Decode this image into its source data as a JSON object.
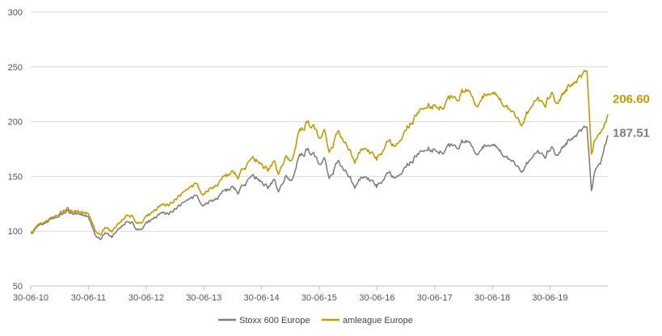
{
  "chart_data": {
    "type": "line",
    "title": "",
    "xlabel": "",
    "ylabel": "",
    "ylim": [
      50,
      300
    ],
    "yticks": [
      50,
      100,
      150,
      200,
      250,
      300
    ],
    "xticks": [
      "30-06-10",
      "30-06-11",
      "30-06-12",
      "30-06-13",
      "30-06-14",
      "30-06-15",
      "30-06-16",
      "30-06-17",
      "30-06-18",
      "30-06-19"
    ],
    "grid": "horizontal",
    "legend": "bottom",
    "series": [
      {
        "name": "Stoxx 600 Europe",
        "color": "#7f7f7f",
        "end_label": "187.51",
        "points": [
          [
            "2010-06-30",
            98
          ],
          [
            "2010-09-01",
            106
          ],
          [
            "2010-11-01",
            110
          ],
          [
            "2011-01-01",
            115
          ],
          [
            "2011-02-15",
            118
          ],
          [
            "2011-04-01",
            116
          ],
          [
            "2011-05-15",
            117
          ],
          [
            "2011-07-01",
            113
          ],
          [
            "2011-08-10",
            96
          ],
          [
            "2011-09-15",
            93
          ],
          [
            "2011-10-15",
            99
          ],
          [
            "2011-11-25",
            95
          ],
          [
            "2012-01-15",
            103
          ],
          [
            "2012-03-15",
            110
          ],
          [
            "2012-05-01",
            103
          ],
          [
            "2012-06-01",
            100
          ],
          [
            "2012-07-15",
            108
          ],
          [
            "2012-09-15",
            114
          ],
          [
            "2012-12-01",
            117
          ],
          [
            "2013-02-01",
            124
          ],
          [
            "2013-05-20",
            132
          ],
          [
            "2013-06-25",
            122
          ],
          [
            "2013-09-01",
            130
          ],
          [
            "2013-12-31",
            140
          ],
          [
            "2014-01-31",
            136
          ],
          [
            "2014-03-01",
            143
          ],
          [
            "2014-06-01",
            148
          ],
          [
            "2014-08-10",
            140
          ],
          [
            "2014-09-20",
            148
          ],
          [
            "2014-10-15",
            137
          ],
          [
            "2014-12-01",
            150
          ],
          [
            "2015-01-10",
            145
          ],
          [
            "2015-02-15",
            165
          ],
          [
            "2015-04-15",
            175
          ],
          [
            "2015-06-01",
            168
          ],
          [
            "2015-07-01",
            162
          ],
          [
            "2015-08-01",
            170
          ],
          [
            "2015-09-01",
            150
          ],
          [
            "2015-11-01",
            163
          ],
          [
            "2016-01-01",
            152
          ],
          [
            "2016-02-11",
            140
          ],
          [
            "2016-04-01",
            150
          ],
          [
            "2016-06-24",
            143
          ],
          [
            "2016-06-27",
            140
          ],
          [
            "2016-09-01",
            150
          ],
          [
            "2016-11-15",
            150
          ],
          [
            "2017-01-01",
            160
          ],
          [
            "2017-03-01",
            168
          ],
          [
            "2017-05-15",
            178
          ],
          [
            "2017-08-15",
            172
          ],
          [
            "2017-11-01",
            178
          ],
          [
            "2018-01-25",
            183
          ],
          [
            "2018-03-23",
            170
          ],
          [
            "2018-05-22",
            180
          ],
          [
            "2018-08-01",
            175
          ],
          [
            "2018-10-01",
            170
          ],
          [
            "2018-12-27",
            153
          ],
          [
            "2019-02-01",
            162
          ],
          [
            "2019-04-15",
            175
          ],
          [
            "2019-06-01",
            168
          ],
          [
            "2019-07-15",
            178
          ],
          [
            "2019-08-15",
            168
          ],
          [
            "2019-11-01",
            185
          ],
          [
            "2020-01-15",
            195
          ],
          [
            "2020-02-19",
            198
          ],
          [
            "2020-03-18",
            135
          ],
          [
            "2020-04-15",
            158
          ],
          [
            "2020-05-15",
            162
          ],
          [
            "2020-06-10",
            180
          ],
          [
            "2020-06-30",
            187.51
          ]
        ]
      },
      {
        "name": "amleague Europe",
        "color": "#c49a00",
        "end_label": "206.60",
        "points": [
          [
            "2010-06-30",
            99
          ],
          [
            "2010-09-01",
            107
          ],
          [
            "2010-11-01",
            111
          ],
          [
            "2011-01-01",
            117
          ],
          [
            "2011-02-15",
            120
          ],
          [
            "2011-04-01",
            118
          ],
          [
            "2011-05-15",
            119
          ],
          [
            "2011-07-01",
            116
          ],
          [
            "2011-08-10",
            100
          ],
          [
            "2011-09-15",
            97
          ],
          [
            "2011-10-15",
            104
          ],
          [
            "2011-11-25",
            100
          ],
          [
            "2012-01-15",
            108
          ],
          [
            "2012-03-15",
            116
          ],
          [
            "2012-05-01",
            109
          ],
          [
            "2012-06-01",
            106
          ],
          [
            "2012-07-15",
            114
          ],
          [
            "2012-09-15",
            121
          ],
          [
            "2012-12-01",
            125
          ],
          [
            "2013-02-01",
            133
          ],
          [
            "2013-05-20",
            143
          ],
          [
            "2013-06-25",
            132
          ],
          [
            "2013-09-01",
            142
          ],
          [
            "2013-12-31",
            154
          ],
          [
            "2014-01-31",
            150
          ],
          [
            "2014-03-01",
            158
          ],
          [
            "2014-06-01",
            164
          ],
          [
            "2014-08-10",
            156
          ],
          [
            "2014-09-20",
            165
          ],
          [
            "2014-10-15",
            153
          ],
          [
            "2014-12-01",
            168
          ],
          [
            "2015-01-10",
            163
          ],
          [
            "2015-02-15",
            187
          ],
          [
            "2015-04-15",
            200
          ],
          [
            "2015-06-01",
            193
          ],
          [
            "2015-07-01",
            186
          ],
          [
            "2015-08-01",
            196
          ],
          [
            "2015-09-01",
            174
          ],
          [
            "2015-11-01",
            190
          ],
          [
            "2016-01-01",
            177
          ],
          [
            "2016-02-11",
            163
          ],
          [
            "2016-04-01",
            176
          ],
          [
            "2016-06-24",
            168
          ],
          [
            "2016-06-27",
            165
          ],
          [
            "2016-09-01",
            178
          ],
          [
            "2016-11-15",
            180
          ],
          [
            "2017-01-01",
            194
          ],
          [
            "2017-03-01",
            205
          ],
          [
            "2017-05-15",
            218
          ],
          [
            "2017-08-15",
            213
          ],
          [
            "2017-11-01",
            222
          ],
          [
            "2018-01-25",
            230
          ],
          [
            "2018-03-23",
            214
          ],
          [
            "2018-05-22",
            227
          ],
          [
            "2018-08-01",
            222
          ],
          [
            "2018-10-01",
            217
          ],
          [
            "2018-12-27",
            195
          ],
          [
            "2019-02-01",
            208
          ],
          [
            "2019-04-15",
            224
          ],
          [
            "2019-06-01",
            215
          ],
          [
            "2019-07-15",
            228
          ],
          [
            "2019-08-15",
            215
          ],
          [
            "2019-11-01",
            235
          ],
          [
            "2020-01-15",
            245
          ],
          [
            "2020-02-19",
            250
          ],
          [
            "2020-03-18",
            168
          ],
          [
            "2020-04-15",
            185
          ],
          [
            "2020-05-15",
            190
          ],
          [
            "2020-06-10",
            200
          ],
          [
            "2020-06-30",
            206.6
          ]
        ]
      }
    ]
  }
}
